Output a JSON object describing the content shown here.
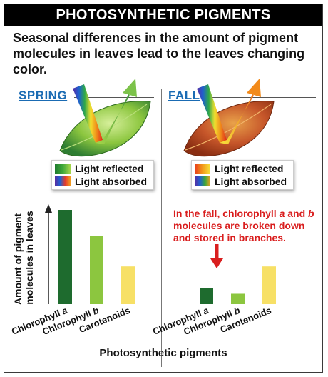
{
  "title": "PHOTOSYNTHETIC PIGMENTS",
  "intro": "Seasonal differences in the amount of pigment molecules in leaves lead to the leaves changing color.",
  "spring": {
    "label": "SPRING",
    "legend": [
      {
        "label": "Light reflected",
        "gradient": [
          "#1e7a2e",
          "#3ea83a",
          "#a6d64a"
        ]
      },
      {
        "label": "Light absorbed",
        "gradient": [
          "#5a2ca0",
          "#1f5fd0",
          "#e83a2a",
          "#f0a020"
        ]
      }
    ],
    "leaf_colors": [
      "#d6ef9a",
      "#8cc63f",
      "#2e7d32"
    ],
    "arrow_colors": [
      "#a6d64a",
      "#2e8b3a"
    ]
  },
  "fall": {
    "label": "FALL",
    "legend": [
      {
        "label": "Light reflected",
        "gradient": [
          "#e83a1a",
          "#f29a1a",
          "#f7e23a"
        ]
      },
      {
        "label": "Light absorbed",
        "gradient": [
          "#5a2ca0",
          "#1f5fd0",
          "#3aa83a",
          "#f0a020"
        ]
      }
    ],
    "leaf_colors": [
      "#e9a24a",
      "#c6562a",
      "#8a2e12"
    ],
    "arrow_colors": [
      "#f7e23a",
      "#e8601a"
    ]
  },
  "note": "In the fall, chlorophyll a and b molecules are broken down and stored in branches.",
  "chart_data": [
    {
      "type": "bar",
      "panel": "spring",
      "categories": [
        "Chlorophyll a",
        "Chlorophyll b",
        "Carotenoids"
      ],
      "values": [
        100,
        72,
        40
      ],
      "colors": [
        "#1e6b2e",
        "#8cc63f",
        "#f7e066"
      ],
      "ylabel": "Amount of pigment molecules in leaves",
      "ylim": [
        0,
        100
      ]
    },
    {
      "type": "bar",
      "panel": "fall",
      "categories": [
        "Chlorophyll a",
        "Chlorophyll b",
        "Carotenoids"
      ],
      "values": [
        17,
        11,
        40
      ],
      "colors": [
        "#1e6b2e",
        "#8cc63f",
        "#f7e066"
      ],
      "ylim": [
        0,
        100
      ]
    }
  ],
  "xlabel": "Photosynthetic pigments"
}
